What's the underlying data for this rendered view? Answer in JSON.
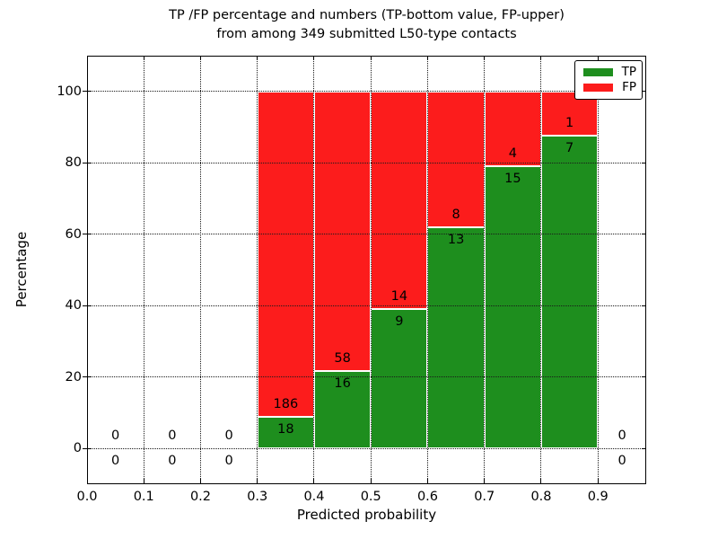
{
  "chart_data": {
    "type": "bar",
    "stacked": true,
    "title_line1": "TP /FP percentage and numbers (TP-bottom value, FP-upper)",
    "title_line2": "from among 349 submitted L50-type contacts",
    "xlabel": "Predicted probability",
    "ylabel": "Percentage",
    "total_contacts": 349,
    "xlim": [
      0,
      0.985
    ],
    "ylim": [
      -10,
      110
    ],
    "xtick_values": [
      0.0,
      0.1,
      0.2,
      0.3,
      0.4,
      0.5,
      0.6,
      0.7,
      0.8,
      0.9
    ],
    "xtick_labels": [
      "0.0",
      "0.1",
      "0.2",
      "0.3",
      "0.4",
      "0.5",
      "0.6",
      "0.7",
      "0.8",
      "0.9"
    ],
    "ytick_values": [
      0,
      20,
      40,
      60,
      80,
      100
    ],
    "ytick_labels": [
      "0",
      "20",
      "40",
      "60",
      "80",
      "100"
    ],
    "grid": true,
    "grid_style": "dotted",
    "bar_edge_color": "#ffffff",
    "colors": {
      "tp": "#1e8e1e",
      "fp": "#fc1c1c"
    },
    "legend": {
      "position": "upper right",
      "entries": [
        {
          "label": "TP",
          "color": "#1e8e1e"
        },
        {
          "label": "FP",
          "color": "#fc1c1c"
        }
      ]
    },
    "bins": [
      {
        "range": [
          0.0,
          0.1
        ],
        "tp": 0,
        "fp": 0
      },
      {
        "range": [
          0.1,
          0.2
        ],
        "tp": 0,
        "fp": 0
      },
      {
        "range": [
          0.2,
          0.3
        ],
        "tp": 0,
        "fp": 0
      },
      {
        "range": [
          0.3,
          0.4
        ],
        "tp": 18,
        "fp": 186
      },
      {
        "range": [
          0.4,
          0.5
        ],
        "tp": 16,
        "fp": 58
      },
      {
        "range": [
          0.5,
          0.6
        ],
        "tp": 9,
        "fp": 14
      },
      {
        "range": [
          0.6,
          0.7
        ],
        "tp": 13,
        "fp": 8
      },
      {
        "range": [
          0.7,
          0.8
        ],
        "tp": 15,
        "fp": 4
      },
      {
        "range": [
          0.8,
          0.9
        ],
        "tp": 7,
        "fp": 1
      },
      {
        "range": [
          0.9,
          1.0
        ],
        "tp": 0,
        "fp": 0
      }
    ]
  }
}
